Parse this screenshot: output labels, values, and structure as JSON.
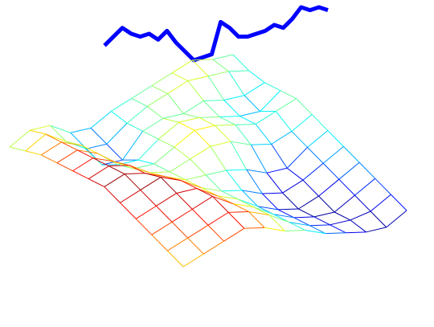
{
  "chart_data": [
    {
      "type": "line",
      "color": "#0000ff",
      "values": [
        0.3,
        0.45,
        0.6,
        0.5,
        0.45,
        0.5,
        0.4,
        0.55,
        0.35,
        0.2,
        0.05,
        0.1,
        0.15,
        0.7,
        0.6,
        0.45,
        0.45,
        0.5,
        0.55,
        0.65,
        0.6,
        0.75,
        0.95,
        0.9,
        0.95,
        0.9
      ]
    },
    {
      "type": "surface",
      "colormap": "jet",
      "z": [
        [
          0.5,
          0.6,
          0.55,
          0.35,
          0.3,
          0.4,
          0.45,
          0.5,
          0.55,
          0.6,
          0.5,
          0.45
        ],
        [
          0.6,
          0.7,
          0.5,
          0.3,
          0.25,
          0.4,
          0.5,
          0.55,
          0.6,
          0.55,
          0.5,
          0.4
        ],
        [
          0.7,
          0.75,
          0.6,
          0.25,
          0.2,
          0.45,
          0.5,
          0.45,
          0.5,
          0.4,
          0.35,
          0.4
        ],
        [
          0.75,
          0.8,
          0.65,
          0.4,
          0.35,
          0.5,
          0.6,
          0.55,
          0.45,
          0.35,
          0.3,
          0.45
        ],
        [
          0.8,
          0.85,
          0.7,
          0.5,
          0.45,
          0.55,
          0.65,
          0.6,
          0.5,
          0.4,
          0.45,
          0.5
        ],
        [
          0.85,
          0.9,
          0.8,
          0.6,
          0.5,
          0.55,
          0.6,
          0.55,
          0.4,
          0.3,
          0.35,
          0.45
        ],
        [
          0.9,
          0.95,
          0.85,
          0.7,
          0.55,
          0.5,
          0.45,
          0.35,
          0.2,
          0.15,
          0.3,
          0.4
        ],
        [
          0.85,
          0.9,
          0.95,
          0.8,
          0.6,
          0.45,
          0.35,
          0.2,
          0.1,
          0.15,
          0.25,
          0.35
        ],
        [
          0.8,
          0.85,
          0.9,
          0.85,
          0.65,
          0.5,
          0.3,
          0.15,
          0.05,
          0.1,
          0.2,
          0.3
        ],
        [
          0.75,
          0.8,
          0.85,
          0.9,
          0.7,
          0.55,
          0.35,
          0.2,
          0.1,
          0.05,
          0.15,
          0.25
        ],
        [
          0.7,
          0.75,
          0.8,
          0.85,
          0.75,
          0.6,
          0.4,
          0.25,
          0.15,
          0.1,
          0.1,
          0.2
        ],
        [
          0.65,
          0.7,
          0.75,
          0.8,
          0.7,
          0.55,
          0.45,
          0.3,
          0.2,
          0.1,
          0.05,
          0.15
        ]
      ]
    }
  ]
}
